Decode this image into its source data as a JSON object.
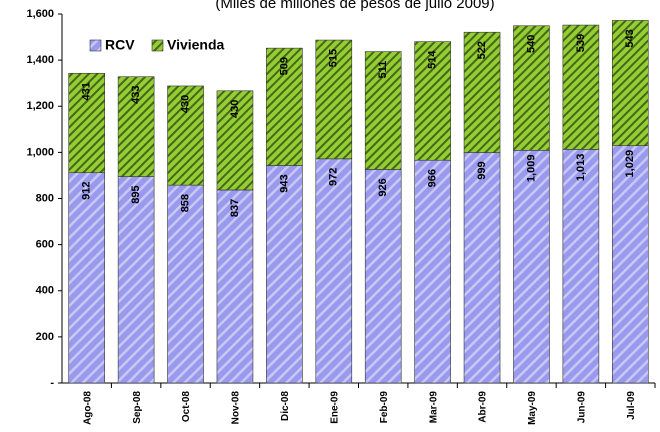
{
  "chart_data": {
    "type": "stacked_bar",
    "subtitle": "(Miles de millones de pesos de julio 2009)",
    "categories": [
      "Ago-08",
      "Sep-08",
      "Oct-08",
      "Nov-08",
      "Dic-08",
      "Ene-09",
      "Feb-09",
      "Mar-09",
      "Abr-09",
      "May-09",
      "Jun-09",
      "Jul-09"
    ],
    "series": [
      {
        "name": "RCV",
        "color": "#9999ee",
        "values": [
          912,
          895,
          858,
          837,
          943,
          972,
          926,
          966,
          999,
          1009,
          1013,
          1029
        ],
        "value_labels": [
          "912",
          "895",
          "858",
          "837",
          "943",
          "972",
          "926",
          "966",
          "999",
          "1,009",
          "1,013",
          "1,029"
        ]
      },
      {
        "name": "Vivienda",
        "color": "#99cc33",
        "values": [
          431,
          433,
          430,
          430,
          509,
          515,
          511,
          514,
          522,
          540,
          539,
          543
        ]
      }
    ],
    "ylim": [
      0,
      1600
    ],
    "yticks": [
      {
        "value": 0,
        "label": "-"
      },
      200,
      400,
      600,
      800,
      {
        "value": 1000,
        "label": "1,000"
      },
      {
        "value": 1200,
        "label": "1,200"
      },
      {
        "value": 1400,
        "label": "1,400"
      },
      {
        "value": 1600,
        "label": "1,600"
      }
    ],
    "legend": "upper left"
  }
}
